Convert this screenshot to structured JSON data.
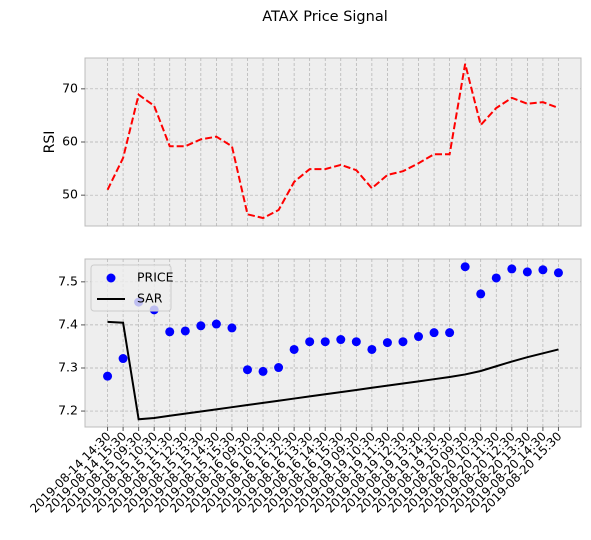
{
  "chart_data": [
    {
      "type": "line",
      "title": "ATAX Price Signal",
      "ylabel": "RSI",
      "color": "#ff0000",
      "linestyle": "dashed",
      "values": [
        51,
        57,
        68.9,
        66.8,
        59.2,
        59.2,
        60.5,
        61,
        59.2,
        46.4,
        45.7,
        47.2,
        52.5,
        54.9,
        54.9,
        55.7,
        54.7,
        51.3,
        53.8,
        54.5,
        56,
        57.7,
        57.7,
        74.7,
        63.2,
        66.4,
        68.3,
        67.2,
        67.5,
        66.4
      ],
      "ylim": [
        44.2,
        75.8
      ],
      "yticks": [
        50,
        60,
        70
      ],
      "grid": true
    },
    {
      "type": "combo",
      "legend": "upper left",
      "grid": true,
      "categories": [
        "2019-08-14 14:30",
        "2019-08-14 15:30",
        "2019-08-15 09:30",
        "2019-08-15 10:30",
        "2019-08-15 11:30",
        "2019-08-15 12:30",
        "2019-08-15 13:30",
        "2019-08-15 14:30",
        "2019-08-15 15:30",
        "2019-08-16 09:30",
        "2019-08-16 10:30",
        "2019-08-16 11:30",
        "2019-08-16 12:30",
        "2019-08-16 13:30",
        "2019-08-16 14:30",
        "2019-08-16 15:30",
        "2019-08-19 09:30",
        "2019-08-19 10:30",
        "2019-08-19 11:30",
        "2019-08-19 12:30",
        "2019-08-19 13:30",
        "2019-08-19 14:30",
        "2019-08-19 15:30",
        "2019-08-20 09:30",
        "2019-08-20 10:30",
        "2019-08-20 11:30",
        "2019-08-20 12:30",
        "2019-08-20 13:30",
        "2019-08-20 14:30",
        "2019-08-20 15:30"
      ],
      "series": [
        {
          "name": "PRICE",
          "kind": "scatter",
          "color": "#0000ff",
          "values": [
            7.281,
            7.322,
            7.453,
            7.435,
            7.384,
            7.386,
            7.398,
            7.402,
            7.393,
            7.296,
            7.292,
            7.301,
            7.343,
            7.361,
            7.361,
            7.366,
            7.361,
            7.343,
            7.359,
            7.361,
            7.373,
            7.382,
            7.382,
            7.535,
            7.472,
            7.509,
            7.53,
            7.523,
            7.528,
            7.521
          ]
        },
        {
          "name": "SAR",
          "kind": "line",
          "color": "#000000",
          "values": [
            7.407,
            7.405,
            7.181,
            7.184,
            7.189,
            7.194,
            7.199,
            7.204,
            7.209,
            7.214,
            7.219,
            7.224,
            7.229,
            7.234,
            7.239,
            7.244,
            7.249,
            7.254,
            7.259,
            7.264,
            7.269,
            7.274,
            7.279,
            7.285,
            7.293,
            7.304,
            7.315,
            7.325,
            7.334,
            7.343
          ]
        }
      ],
      "ylim": [
        7.163,
        7.553
      ],
      "yticks": [
        7.2,
        7.3,
        7.4,
        7.5
      ]
    }
  ]
}
